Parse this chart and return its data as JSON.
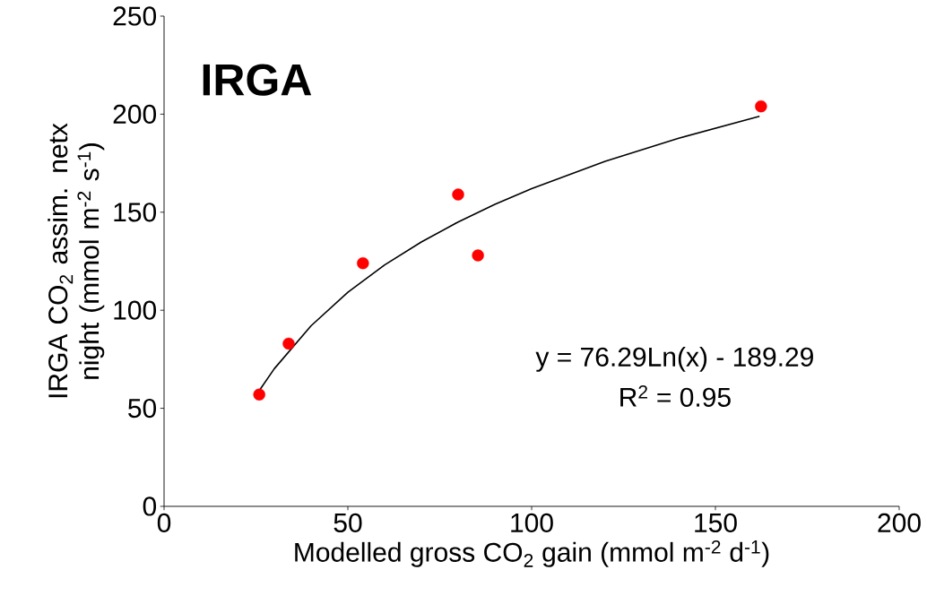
{
  "chart_data": {
    "type": "scatter",
    "title": "IRGA",
    "xlabel": "Modelled gross CO$_{2}$ gain (mmol m$^{-2}$ d$^{-1}$)",
    "ylabel": "IRGA CO$_{2}$ assim. netx night (mmol m$^{-2}$ s$^{-1}$)",
    "annotations": [
      "y = 76.29Ln(x) - 189.29",
      "R$^{2}$ = 0.95"
    ],
    "xlim": [
      0,
      200
    ],
    "ylim": [
      0,
      250
    ],
    "xticks": [
      0,
      50,
      100,
      150,
      200
    ],
    "yticks": [
      0,
      50,
      100,
      150,
      200,
      250
    ],
    "marker": "circle",
    "series": [
      {
        "color": "#ff0000",
        "x": [
          25.9,
          33.9,
          54.1,
          80.0,
          85.4,
          162.4
        ],
        "values": [
          57,
          83,
          124,
          159,
          128,
          204
        ]
      },
      {
        "type": "line",
        "color": "#000000",
        "marker": "none",
        "x": [
          26,
          30,
          40,
          50,
          60,
          70,
          80,
          90,
          100,
          120,
          140,
          162
        ],
        "values": [
          59.3,
          70.2,
          92.1,
          109.2,
          123.1,
          134.8,
          145.0,
          154.0,
          162.0,
          176.0,
          187.7,
          198.9
        ]
      }
    ]
  }
}
